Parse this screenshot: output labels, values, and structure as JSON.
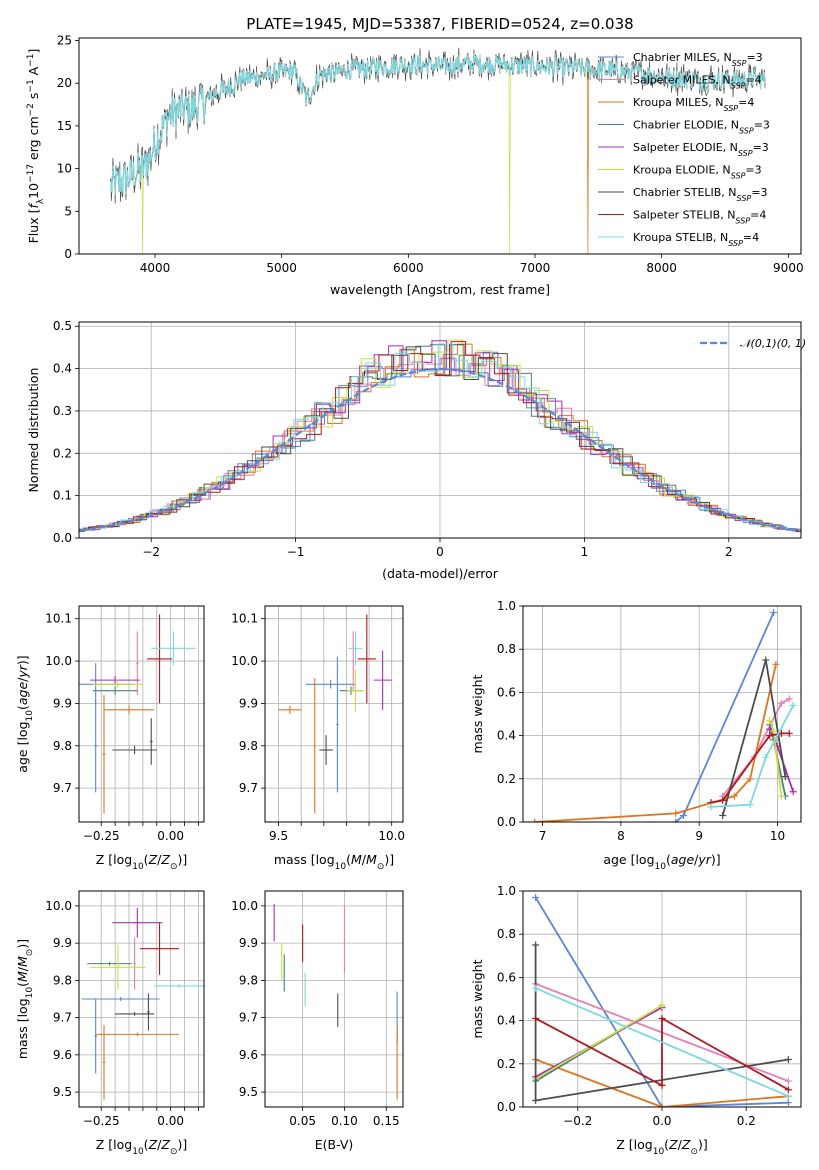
{
  "figure_title": "PLATE=1945, MJD=53387, FIBERID=0524, z=0.038",
  "models": [
    {
      "name": "Chabrier MILES",
      "nssp": "3",
      "color": "#5b87d6"
    },
    {
      "name": "Salpeter MILES",
      "nssp": "4",
      "color": "#e57fb5"
    },
    {
      "name": "Kroupa MILES",
      "nssp": "4",
      "color": "#e0751f"
    },
    {
      "name": "Chabrier ELODIE",
      "nssp": "3",
      "color": "#4a7f80"
    },
    {
      "name": "Salpeter ELODIE",
      "nssp": "3",
      "color": "#a62fb8"
    },
    {
      "name": "Kroupa ELODIE",
      "nssp": "3",
      "color": "#c9e03c"
    },
    {
      "name": "Chabrier STELIB",
      "nssp": "3",
      "color": "#4d4d4d"
    },
    {
      "name": "Salpeter STELIB",
      "nssp": "4",
      "color": "#b0171f"
    },
    {
      "name": "Kroupa STELIB",
      "nssp": "4",
      "color": "#7ed8e0"
    }
  ],
  "chart_data": [
    {
      "id": "spectrum",
      "type": "line",
      "xlabel": "wavelength [Angstrom, rest frame]",
      "ylabel": "Flux [f_λ10^-17 erg cm^-2 s^-1 A^-1]",
      "xlim": [
        3400,
        9100
      ],
      "ylim": [
        0,
        25.3
      ],
      "xticks": [
        4000,
        5000,
        6000,
        7000,
        8000,
        9000
      ],
      "yticks": [
        0,
        5,
        10,
        15,
        20,
        25
      ],
      "grid": false,
      "legend": "top-right",
      "continuum": {
        "x": [
          3650,
          3800,
          3900,
          3950,
          4000,
          4100,
          4200,
          4300,
          4400,
          4500,
          4700,
          4900,
          5100,
          5200,
          5300,
          5500,
          5800,
          6000,
          6300,
          6500,
          6700,
          7000,
          7300,
          7600,
          7900,
          8200,
          8500,
          8800
        ],
        "y": [
          8,
          9,
          10,
          11,
          13,
          16,
          17,
          17,
          18,
          19,
          20.5,
          21,
          21.5,
          18,
          21,
          21.5,
          22,
          22.2,
          22,
          22.3,
          22.2,
          22,
          21.8,
          21.5,
          21,
          20.5,
          20.3,
          20.5
        ]
      },
      "dips": [
        {
          "series": 5,
          "x": 6800,
          "y": 0
        },
        {
          "series": 2,
          "x": 7420,
          "y": 0
        },
        {
          "series": 5,
          "x": 3900,
          "y": 0
        }
      ]
    },
    {
      "id": "residuals",
      "type": "histogram",
      "xlabel": "(data-model)/error",
      "ylabel": "Normed distribution",
      "xlim": [
        -2.5,
        2.5
      ],
      "ylim": [
        0,
        0.51
      ],
      "xticks": [
        -2,
        -1,
        0,
        1,
        2
      ],
      "yticks": [
        0,
        0.1,
        0.2,
        0.3,
        0.4,
        0.5
      ],
      "grid": true,
      "legend": "top-right",
      "reference": {
        "name": "𝒩(0,1)",
        "color": "#5b87d6"
      }
    },
    {
      "id": "age-vs-Z",
      "type": "errorbar",
      "xlabel": "Z [log10(Z/Z⊙)]",
      "ylabel": "age  [log10(age/yr)]",
      "xlim": [
        -0.33,
        0.12
      ],
      "ylim": [
        9.62,
        10.13
      ],
      "xticks": [
        -0.25,
        -0.2,
        -0.15,
        -0.1,
        -0.05,
        0.0,
        0.05,
        0.1
      ],
      "xticklabels": [
        "−0.25",
        "",
        "",
        "",
        "",
        "0.00",
        "",
        ""
      ],
      "yticks": [
        9.7,
        9.8,
        9.9,
        10.0,
        10.1
      ],
      "grid": true,
      "points": [
        {
          "x": -0.27,
          "xerr": 0.14,
          "y": 9.945,
          "yerr": 0.05,
          "color": "#5b87d6"
        },
        {
          "x": -0.27,
          "xerr": 0.005,
          "y": 9.8,
          "yerr": 0.11,
          "color": "#5b87d6"
        },
        {
          "x": -0.12,
          "xerr": 0.005,
          "y": 9.995,
          "yerr": 0.075,
          "color": "#e57fb5"
        },
        {
          "x": -0.15,
          "xerr": 0.09,
          "y": 9.885,
          "yerr": 0.01,
          "color": "#e0751f"
        },
        {
          "x": -0.24,
          "xerr": 0.005,
          "y": 9.78,
          "yerr": 0.14,
          "color": "#e0751f"
        },
        {
          "x": -0.2,
          "xerr": 0.08,
          "y": 9.93,
          "yerr": 0.01,
          "color": "#4a7f80"
        },
        {
          "x": -0.2,
          "xerr": 0.09,
          "y": 9.955,
          "yerr": 0.01,
          "color": "#a62fb8"
        },
        {
          "x": -0.19,
          "xerr": 0.09,
          "y": 9.945,
          "yerr": 0.01,
          "color": "#c9e03c"
        },
        {
          "x": -0.13,
          "xerr": 0.08,
          "y": 9.79,
          "yerr": 0.01,
          "color": "#4d4d4d"
        },
        {
          "x": -0.07,
          "xerr": 0.005,
          "y": 9.81,
          "yerr": 0.055,
          "color": "#4d4d4d"
        },
        {
          "x": -0.04,
          "xerr": 0.045,
          "y": 10.005,
          "yerr": 0.105,
          "color": "#b0171f"
        },
        {
          "x": 0.01,
          "xerr": 0.08,
          "y": 10.03,
          "yerr": 0.04,
          "color": "#7ed8e0"
        }
      ]
    },
    {
      "id": "age-vs-mass",
      "type": "errorbar",
      "xlabel": "mass [log10(M/M⊙)]",
      "ylabel": "",
      "xlim": [
        9.44,
        10.05
      ],
      "ylim": [
        9.62,
        10.13
      ],
      "xticks": [
        9.5,
        9.6,
        9.7,
        9.8,
        9.9,
        10.0
      ],
      "xticklabels": [
        "9.5",
        "",
        "",
        "",
        "",
        "10.0"
      ],
      "yticks": [
        9.7,
        9.8,
        9.9,
        10.0,
        10.1
      ],
      "grid": true,
      "points": [
        {
          "x": 9.73,
          "xerr": 0.11,
          "y": 9.945,
          "yerr": 0.01,
          "color": "#5b87d6"
        },
        {
          "x": 9.76,
          "xerr": 0.005,
          "y": 9.85,
          "yerr": 0.16,
          "color": "#5b87d6"
        },
        {
          "x": 9.83,
          "xerr": 0.005,
          "y": 10.0,
          "yerr": 0.07,
          "color": "#e57fb5"
        },
        {
          "x": 9.55,
          "xerr": 0.05,
          "y": 9.885,
          "yerr": 0.01,
          "color": "#e0751f"
        },
        {
          "x": 9.66,
          "xerr": 0.005,
          "y": 9.8,
          "yerr": 0.16,
          "color": "#e0751f"
        },
        {
          "x": 9.82,
          "xerr": 0.05,
          "y": 9.93,
          "yerr": 0.01,
          "color": "#4a7f80"
        },
        {
          "x": 9.96,
          "xerr": 0.04,
          "y": 9.955,
          "yerr": 0.07,
          "color": "#a62fb8"
        },
        {
          "x": 9.84,
          "xerr": 0.04,
          "y": 9.93,
          "yerr": 0.05,
          "color": "#c9e03c"
        },
        {
          "x": 9.71,
          "xerr": 0.03,
          "y": 9.79,
          "yerr": 0.035,
          "color": "#4d4d4d"
        },
        {
          "x": 9.89,
          "xerr": 0.04,
          "y": 10.005,
          "yerr": 0.105,
          "color": "#b0171f"
        },
        {
          "x": 9.84,
          "xerr": 0.03,
          "y": 10.03,
          "yerr": 0.04,
          "color": "#7ed8e0"
        }
      ]
    },
    {
      "id": "weight-vs-age",
      "type": "line",
      "xlabel": "age  [log10(age/yr)]",
      "ylabel": "mass weight",
      "xlim": [
        6.75,
        10.3
      ],
      "ylim": [
        0,
        1.0
      ],
      "xticks": [
        7,
        8,
        9,
        10
      ],
      "yticks": [
        0,
        0.2,
        0.4,
        0.6,
        0.8,
        1.0
      ],
      "grid": true,
      "series": [
        {
          "color": "#5b87d6",
          "x": [
            8.7,
            8.8,
            9.95
          ],
          "y": [
            0.0,
            0.03,
            0.97
          ]
        },
        {
          "color": "#e57fb5",
          "x": [
            9.3,
            9.7,
            10.05,
            10.15
          ],
          "y": [
            0.12,
            0.3,
            0.55,
            0.57
          ]
        },
        {
          "color": "#e0751f",
          "x": [
            6.9,
            8.7,
            9.45,
            9.65,
            9.98
          ],
          "y": [
            0.0,
            0.04,
            0.12,
            0.2,
            0.73
          ]
        },
        {
          "color": "#4a7f80",
          "x": [
            9.9,
            9.95,
            10.1
          ],
          "y": [
            0.45,
            0.38,
            0.12
          ]
        },
        {
          "color": "#a62fb8",
          "x": [
            9.9,
            10.0,
            10.2
          ],
          "y": [
            0.43,
            0.35,
            0.14
          ]
        },
        {
          "color": "#c9e03c",
          "x": [
            9.9,
            9.95,
            10.05
          ],
          "y": [
            0.47,
            0.42,
            0.12
          ]
        },
        {
          "color": "#4d4d4d",
          "x": [
            9.3,
            9.85,
            10.1
          ],
          "y": [
            0.03,
            0.75,
            0.21
          ]
        },
        {
          "color": "#b0171f",
          "x": [
            9.15,
            9.3,
            9.9,
            10.05,
            10.15
          ],
          "y": [
            0.09,
            0.1,
            0.4,
            0.41,
            0.41
          ]
        },
        {
          "color": "#7ed8e0",
          "x": [
            9.15,
            9.65,
            9.85,
            10.2
          ],
          "y": [
            0.07,
            0.08,
            0.3,
            0.54
          ]
        }
      ]
    },
    {
      "id": "mass-vs-Z",
      "type": "errorbar",
      "xlabel": "Z [log10(Z/Z⊙)]",
      "ylabel": "mass [log10(M/M⊙)]",
      "xlim": [
        -0.33,
        0.12
      ],
      "ylim": [
        9.46,
        10.04
      ],
      "xticks": [
        -0.25,
        -0.2,
        -0.15,
        -0.1,
        -0.05,
        0.0,
        0.05,
        0.1
      ],
      "xticklabels": [
        "−0.25",
        "",
        "",
        "",
        "",
        "0.00",
        "",
        ""
      ],
      "yticks": [
        9.5,
        9.6,
        9.7,
        9.8,
        9.9,
        10.0
      ],
      "grid": true,
      "points": [
        {
          "x": -0.18,
          "xerr": 0.14,
          "y": 9.75,
          "yerr": 0.005,
          "color": "#5b87d6"
        },
        {
          "x": -0.27,
          "xerr": 0.005,
          "y": 9.65,
          "yerr": 0.1,
          "color": "#5b87d6"
        },
        {
          "x": -0.13,
          "xerr": 0.005,
          "y": 9.845,
          "yerr": 0.07,
          "color": "#e57fb5"
        },
        {
          "x": -0.12,
          "xerr": 0.15,
          "y": 9.655,
          "yerr": 0.005,
          "color": "#e0751f"
        },
        {
          "x": -0.24,
          "xerr": 0.005,
          "y": 9.58,
          "yerr": 0.1,
          "color": "#e0751f"
        },
        {
          "x": -0.22,
          "xerr": 0.08,
          "y": 9.845,
          "yerr": 0.005,
          "color": "#4a7f80"
        },
        {
          "x": -0.12,
          "xerr": 0.09,
          "y": 9.955,
          "yerr": 0.04,
          "color": "#a62fb8"
        },
        {
          "x": -0.19,
          "xerr": 0.1,
          "y": 9.835,
          "yerr": 0.06,
          "color": "#c9e03c"
        },
        {
          "x": -0.13,
          "xerr": 0.07,
          "y": 9.71,
          "yerr": 0.005,
          "color": "#4d4d4d"
        },
        {
          "x": -0.08,
          "xerr": 0.005,
          "y": 9.715,
          "yerr": 0.05,
          "color": "#4d4d4d"
        },
        {
          "x": -0.04,
          "xerr": 0.07,
          "y": 9.885,
          "yerr": 0.07,
          "color": "#b0171f"
        },
        {
          "x": 0.03,
          "xerr": 0.09,
          "y": 9.785,
          "yerr": 0.005,
          "color": "#7ed8e0"
        }
      ]
    },
    {
      "id": "mass-vs-ebv",
      "type": "errorbar",
      "xlabel": "E(B-V)",
      "ylabel": "",
      "xlim": [
        0.005,
        0.17
      ],
      "ylim": [
        9.46,
        10.04
      ],
      "xticks": [
        0.05,
        0.1,
        0.15
      ],
      "xticklabels": [
        "0.05",
        "0.10",
        "0.15"
      ],
      "yticks": [
        9.5,
        9.6,
        9.7,
        9.8,
        9.9,
        10.0
      ],
      "grid": true,
      "points": [
        {
          "x": 0.163,
          "y": 9.7,
          "yerr": 0.07,
          "color": "#5b87d6"
        },
        {
          "x": 0.1,
          "y": 9.91,
          "yerr": 0.09,
          "color": "#e57fb5"
        },
        {
          "x": 0.163,
          "y": 9.58,
          "yerr": 0.1,
          "color": "#e0751f"
        },
        {
          "x": 0.028,
          "y": 9.82,
          "yerr": 0.05,
          "color": "#4a7f80"
        },
        {
          "x": 0.016,
          "y": 9.955,
          "yerr": 0.05,
          "color": "#a62fb8"
        },
        {
          "x": 0.025,
          "y": 9.85,
          "yerr": 0.05,
          "color": "#c9e03c"
        },
        {
          "x": 0.092,
          "y": 9.72,
          "yerr": 0.045,
          "color": "#4d4d4d"
        },
        {
          "x": 0.05,
          "y": 9.9,
          "yerr": 0.05,
          "color": "#b0171f"
        },
        {
          "x": 0.053,
          "y": 9.775,
          "yerr": 0.045,
          "color": "#7ed8e0"
        }
      ]
    },
    {
      "id": "weight-vs-Z",
      "type": "line",
      "xlabel": "Z [log10(Z/Z⊙)]",
      "ylabel": "mass weight",
      "xlim": [
        -0.33,
        0.33
      ],
      "ylim": [
        0,
        1.0
      ],
      "xticks": [
        -0.2,
        0.0,
        0.2
      ],
      "xticklabels": [
        "−0.2",
        "0.0",
        "0.2"
      ],
      "yticks": [
        0,
        0.2,
        0.4,
        0.6,
        0.8,
        1.0
      ],
      "grid": true,
      "series": [
        {
          "color": "#5b87d6",
          "x": [
            -0.3,
            0.0,
            0.3
          ],
          "y": [
            0.97,
            0.0,
            0.02
          ]
        },
        {
          "color": "#e57fb5",
          "x": [
            -0.3,
            0.3
          ],
          "y": [
            0.57,
            0.12
          ]
        },
        {
          "color": "#e0751f",
          "x": [
            -0.3,
            0.0,
            0.3
          ],
          "y": [
            0.22,
            0.0,
            0.05
          ]
        },
        {
          "color": "#4a7f80",
          "x": [
            -0.3,
            0.0
          ],
          "y": [
            0.12,
            0.47
          ]
        },
        {
          "color": "#a62fb8",
          "x": [
            -0.3,
            0.0
          ],
          "y": [
            0.14,
            0.46
          ]
        },
        {
          "color": "#c9e03c",
          "x": [
            -0.3,
            0.0
          ],
          "y": [
            0.13,
            0.47
          ]
        },
        {
          "color": "#4d4d4d",
          "x": [
            -0.3,
            -0.3,
            0.3
          ],
          "y": [
            0.75,
            0.03,
            0.22
          ]
        },
        {
          "color": "#b0171f",
          "x": [
            -0.3,
            0.0,
            0.0,
            0.3
          ],
          "y": [
            0.41,
            0.1,
            0.41,
            0.08
          ]
        },
        {
          "color": "#7ed8e0",
          "x": [
            -0.3,
            0.3
          ],
          "y": [
            0.55,
            0.05
          ]
        }
      ]
    }
  ]
}
